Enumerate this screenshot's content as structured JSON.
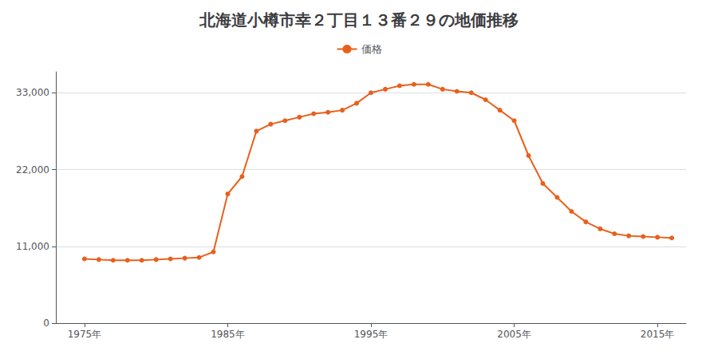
{
  "chart_data": {
    "type": "line",
    "title": "北海道小樽市幸２丁目１３番２９の地価推移",
    "x": [
      1975,
      1976,
      1977,
      1978,
      1979,
      1980,
      1981,
      1982,
      1983,
      1984,
      1985,
      1986,
      1987,
      1988,
      1989,
      1990,
      1991,
      1992,
      1993,
      1994,
      1995,
      1996,
      1997,
      1998,
      1999,
      2000,
      2001,
      2002,
      2003,
      2004,
      2005,
      2006,
      2007,
      2008,
      2009,
      2010,
      2011,
      2012,
      2013,
      2014,
      2015,
      2016
    ],
    "series": [
      {
        "name": "価格",
        "color": "#e8601c",
        "marker": "circle",
        "values": [
          9200,
          9100,
          9000,
          9000,
          9000,
          9100,
          9200,
          9300,
          9400,
          10200,
          18500,
          21000,
          27500,
          28500,
          29000,
          29500,
          30000,
          30200,
          30500,
          31500,
          33000,
          33500,
          34000,
          34200,
          34200,
          33500,
          33200,
          33000,
          32000,
          30500,
          29000,
          24000,
          20000,
          18000,
          16000,
          14500,
          13500,
          12800,
          12500,
          12400,
          12300,
          12200
        ]
      }
    ],
    "xlim": [
      1973,
      2017
    ],
    "xticks": [
      {
        "value": 1975,
        "label": "1975年"
      },
      {
        "value": 1985,
        "label": "1985年"
      },
      {
        "value": 1995,
        "label": "1995年"
      },
      {
        "value": 2005,
        "label": "2005年"
      },
      {
        "value": 2015,
        "label": "2015年"
      }
    ],
    "ylim": [
      0,
      36000
    ],
    "yticks": [
      0,
      {
        "value": 11000,
        "label": "11,000"
      },
      {
        "value": 22000,
        "label": "22,000"
      },
      {
        "value": 33000,
        "label": "33,000"
      }
    ],
    "grid": true,
    "legend": "top"
  }
}
